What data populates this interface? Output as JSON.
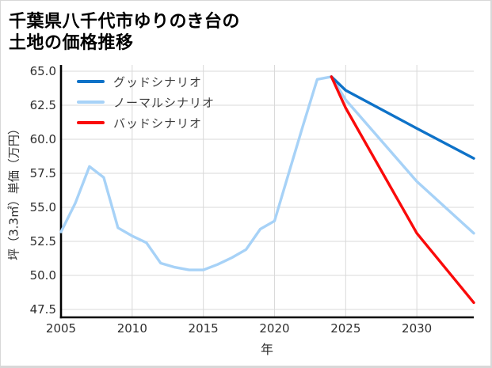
{
  "header": {
    "title_line1": "千葉県八千代市ゆりのき台の",
    "title_line2": "土地の価格推移"
  },
  "chart_data": {
    "type": "line",
    "title": "千葉県八千代市ゆりのき台の土地の価格推移",
    "xlabel": "年",
    "ylabel": "坪（3.3㎡）単価（万円）",
    "xlim": [
      2005,
      2034
    ],
    "ylim": [
      46.9,
      65.5
    ],
    "x_ticks": [
      "2005",
      "2010",
      "2015",
      "2020",
      "2025",
      "2030"
    ],
    "y_ticks": [
      "47.5",
      "50.0",
      "52.5",
      "55.0",
      "57.5",
      "60.0",
      "62.5",
      "65.0"
    ],
    "grid": true,
    "grid_color": "#d9d9d9",
    "axis_color": "#000000",
    "legend_position": "upper-left",
    "series": [
      {
        "name": "グッドシナリオ",
        "color": "#0e72c8",
        "x": [
          2024,
          2025,
          2030,
          2034
        ],
        "values": [
          64.6,
          63.6,
          60.8,
          58.6
        ]
      },
      {
        "name": "ノーマルシナリオ",
        "color": "#a7d2f7",
        "x": [
          2005,
          2006,
          2007,
          2008,
          2009,
          2010,
          2011,
          2012,
          2013,
          2014,
          2015,
          2016,
          2017,
          2018,
          2019,
          2020,
          2021,
          2022,
          2023,
          2024,
          2025,
          2030,
          2034
        ],
        "values": [
          53.2,
          55.3,
          58.0,
          57.2,
          53.5,
          52.9,
          52.4,
          50.9,
          50.6,
          50.4,
          50.4,
          50.8,
          51.3,
          51.9,
          53.4,
          54.0,
          57.5,
          61.0,
          64.4,
          64.6,
          62.9,
          56.9,
          53.1
        ]
      },
      {
        "name": "バッドシナリオ",
        "color": "#fa0a0a",
        "x": [
          2024,
          2025,
          2030,
          2034
        ],
        "values": [
          64.6,
          62.3,
          53.1,
          48.0
        ]
      }
    ]
  }
}
